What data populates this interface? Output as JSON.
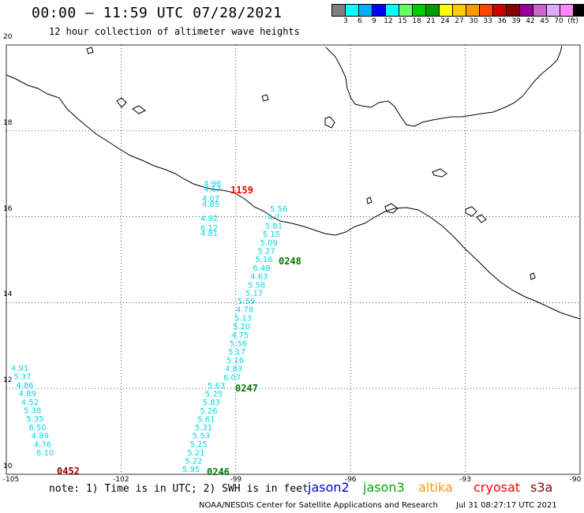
{
  "header": {
    "title": "00:00 – 11:59 UTC 07/28/2021",
    "subtitle": "12 hour collection of altimeter wave heights"
  },
  "legend": {
    "colors": [
      "#808080",
      "#00ffff",
      "#00b0ff",
      "#0000ff",
      "#00ffff",
      "#66ff66",
      "#00cc00",
      "#009900",
      "#ffff00",
      "#ffcc00",
      "#ff9900",
      "#ff4400",
      "#cc0000",
      "#880000",
      "#990099",
      "#cc66cc",
      "#ddaaff",
      "#ff88ff",
      "#000000"
    ],
    "labels": [
      "3",
      "6",
      "9",
      "12",
      "15",
      "18",
      "21",
      "24",
      "27",
      "30",
      "33",
      "36",
      "39",
      "42",
      "45",
      "70",
      "(ft)"
    ]
  },
  "axes": {
    "y_ticks": [
      "20",
      "18",
      "16",
      "14",
      "12",
      "10"
    ],
    "x_ticks": [
      "-105",
      "-102",
      "-99",
      "-96",
      "-93",
      "-90"
    ]
  },
  "chart_data": {
    "type": "scatter",
    "title": "12 hour collection of altimeter wave heights",
    "xlim": [
      -105,
      -90
    ],
    "ylim": [
      10,
      20
    ],
    "units": "ft",
    "tracks": [
      {
        "satellite": "cryosat",
        "time_label": "0452",
        "label_color": "#990000",
        "values": [
          "4.91",
          "5.37",
          "4.86",
          "4.89",
          "4.52",
          "5.38",
          "5.35",
          "6.50",
          "4.89",
          "4.76",
          "6.10"
        ]
      },
      {
        "satellite": "jason3",
        "time_label": "0246",
        "label_color": "#007700",
        "values": [
          "5.63",
          "5.25",
          "5.83",
          "5.26",
          "5.61",
          "5.31",
          "5.53",
          "5.25",
          "5.21",
          "5.22",
          "5.95"
        ]
      },
      {
        "satellite": "jason3",
        "time_label": "0247",
        "label_color": "#007700",
        "values": [
          "5.59",
          "4.78",
          "5.13",
          "5.20",
          "4.75",
          "5.56",
          "5.17",
          "5.16",
          "4.83",
          "6.07"
        ]
      },
      {
        "satellite": "jason3",
        "time_label": "0248",
        "label_color": "#007700",
        "values": [
          "5.56",
          "4.7",
          "5.81",
          "5.15",
          "5.09",
          "5.27",
          "5.16",
          "6.48",
          "4.63",
          "5.58",
          "5.17"
        ]
      },
      {
        "satellite": "cryosat",
        "time_label": "1159",
        "label_color": "#ff0000",
        "values": [
          "4.96",
          "4.67",
          "4.07",
          "4.85",
          "4.92",
          "6.12",
          "4.81"
        ]
      }
    ]
  },
  "footer": {
    "note": "note: 1) Time is in UTC; 2) SWH is in feet",
    "satellites": [
      {
        "name": "jason2",
        "color": "#0000ee"
      },
      {
        "name": "jason3",
        "color": "#00aa00"
      },
      {
        "name": "altika",
        "color": "#ff9900"
      },
      {
        "name": "cryosat",
        "color": "#ff0000"
      },
      {
        "name": "s3a",
        "color": "#880000"
      }
    ],
    "credit": "NOAA/NESDIS Center for Satellite Applications and Research",
    "timestamp": "Jul 31 08:27:17 UTC 2021"
  }
}
